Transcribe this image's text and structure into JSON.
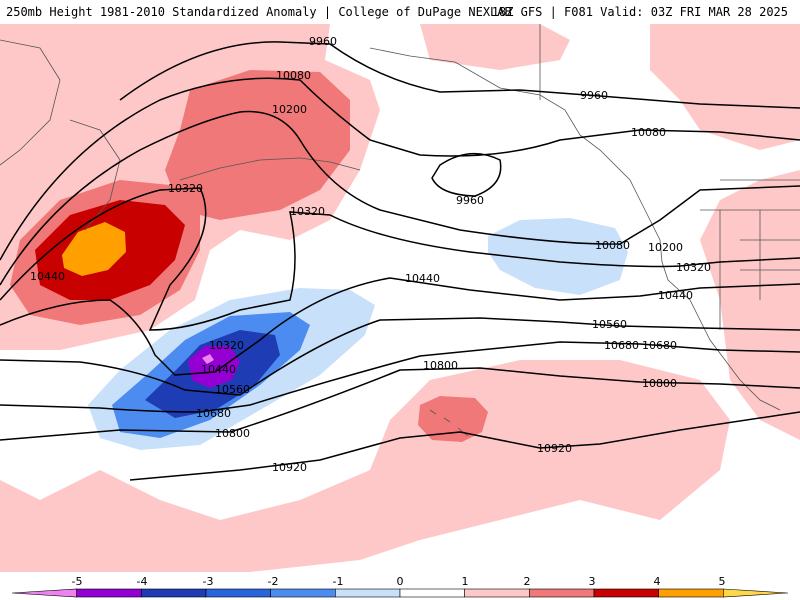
{
  "header": {
    "left": "250mb Height 1981-2010 Standardized Anomaly | College of DuPage NEXLAB",
    "right": "18Z GFS | F081 Valid: 03Z FRI MAR 28 2025"
  },
  "contour_labels": [
    "9960",
    "9960",
    "9960",
    "10080",
    "10080",
    "10080",
    "10200",
    "10200",
    "10320",
    "10320",
    "10320",
    "10320",
    "10440",
    "10440",
    "10440",
    "10440",
    "10560",
    "10560",
    "10680",
    "10680",
    "10680",
    "10800",
    "10800",
    "10800",
    "10920",
    "10920"
  ],
  "colorbar": {
    "ticks": [
      "-5",
      "-4",
      "-3",
      "-2",
      "-1",
      "0",
      "1",
      "2",
      "3",
      "4",
      "5"
    ],
    "colors": [
      "#ee82ee",
      "#9400d3",
      "#1e3cb4",
      "#2864dc",
      "#4c8cf0",
      "#c8e0fa",
      "#ffffff",
      "#ffc8c8",
      "#f07878",
      "#c80000",
      "#ffa000",
      "#ffd84a"
    ]
  }
}
